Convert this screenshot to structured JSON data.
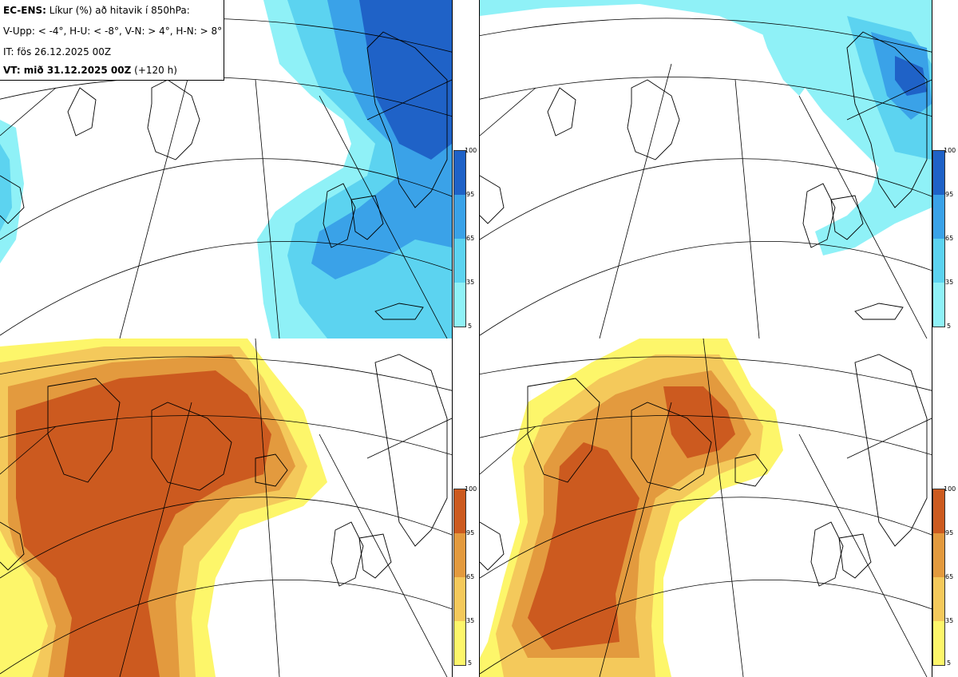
{
  "info": {
    "line1_bold": "EC-ENS:",
    "line1_rest": " Líkur (%) að hitavik í 850hPa:",
    "line2": "V-Upp: < -4°, H-U: < -8°, V-N: > 4°, H-N: > 8°",
    "line3": "IT: fös 26.12.2025 00Z",
    "line4_bold": "VT: mið 31.12.2025 00Z",
    "line4_rest": " (+120 h)"
  },
  "colorbar_ticks": [
    "100",
    "95",
    "65",
    "35",
    "5"
  ],
  "colors": {
    "blue_5": "#8ff1f7",
    "blue_35": "#5cd3f0",
    "blue_65": "#3aa2e8",
    "blue_95": "#1f62c7",
    "orange_5": "#fdf66a",
    "orange_35": "#f4c95b",
    "orange_65": "#e39a3e",
    "orange_95": "#cc5a1f"
  }
}
